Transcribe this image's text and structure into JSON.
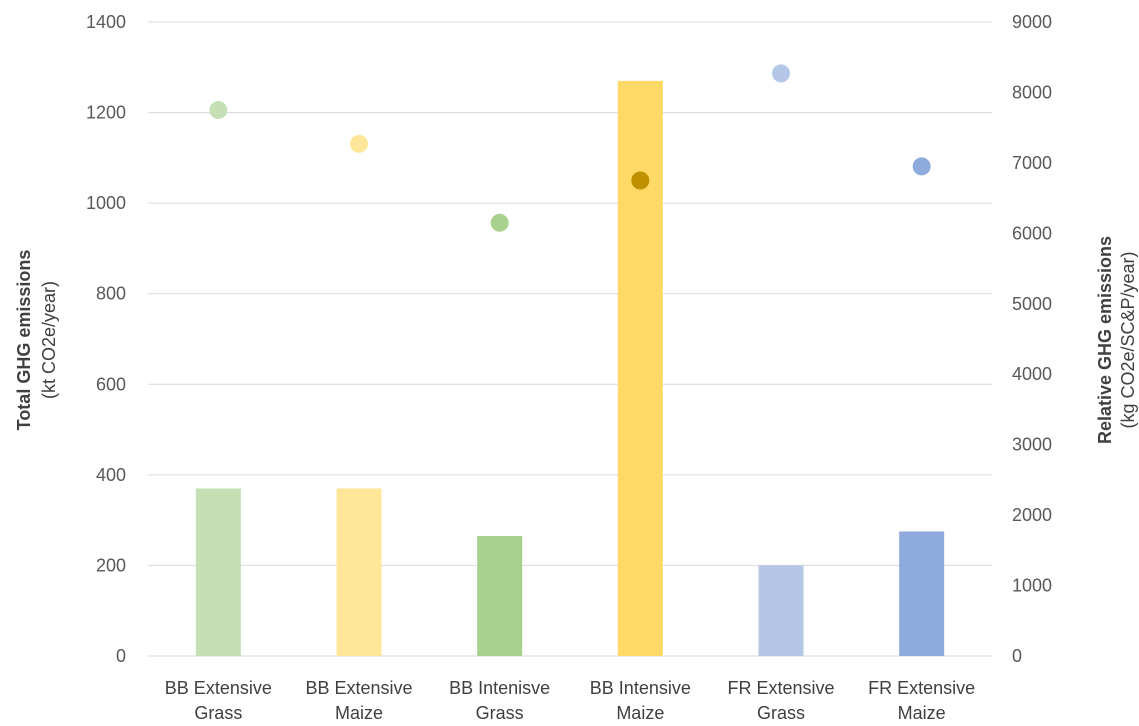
{
  "chart_data": {
    "type": "bar",
    "categories": [
      [
        "BB Extensive",
        "Grass"
      ],
      [
        "BB Extensive",
        "Maize"
      ],
      [
        "BB Intenisve",
        "Grass"
      ],
      [
        "BB Intensive",
        "Maize"
      ],
      [
        "FR Extensive",
        "Grass"
      ],
      [
        "FR Extensive",
        "Maize"
      ]
    ],
    "series": [
      {
        "kind": "bar",
        "axis": "left",
        "values": [
          370,
          370,
          265,
          1270,
          200,
          275
        ],
        "colors": [
          "#c5e0b4",
          "#ffe699",
          "#a9d18e",
          "#ffd966",
          "#b4c7e7",
          "#8faadc"
        ]
      },
      {
        "kind": "point",
        "axis": "right",
        "values": [
          7750,
          7270,
          6150,
          6750,
          8270,
          6950
        ],
        "colors": [
          "#c5e0b4",
          "#ffe699",
          "#a9d18e",
          "#bf9000",
          "#b4c7e7",
          "#8faadc"
        ]
      }
    ],
    "y_left": {
      "title_bold": "Total GHG emissions",
      "title_light": "(kt CO2e/year)",
      "ticks": [
        "0",
        "200",
        "400",
        "600",
        "800",
        "1000",
        "1200",
        "1400"
      ],
      "lim": [
        0,
        1400
      ]
    },
    "y_right": {
      "title_bold": "Relative GHG emissions",
      "title_light": "(kg CO2e/SC&P/year)",
      "ticks": [
        "0",
        "1000",
        "2000",
        "3000",
        "4000",
        "5000",
        "6000",
        "7000",
        "8000",
        "9000"
      ],
      "lim": [
        0,
        9000
      ]
    },
    "grid": true,
    "gridColor": "#d9d9d9",
    "legend": "none"
  }
}
